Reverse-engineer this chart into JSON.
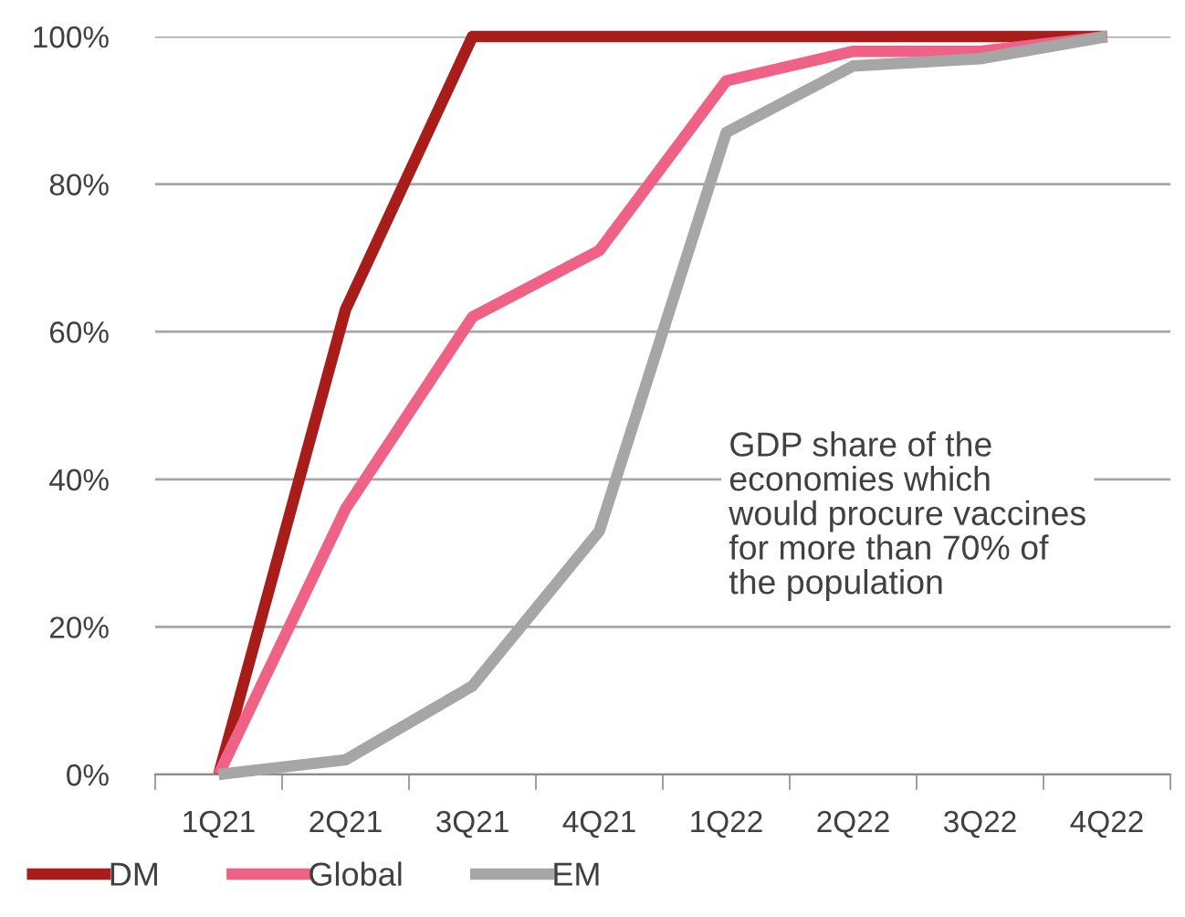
{
  "chart_data": {
    "type": "line",
    "categories": [
      "1Q21",
      "2Q21",
      "3Q21",
      "4Q21",
      "1Q22",
      "2Q22",
      "3Q22",
      "4Q22"
    ],
    "series": [
      {
        "name": "DM",
        "color": "#a81c1a",
        "values": [
          0,
          63,
          100,
          100,
          100,
          100,
          100,
          100
        ]
      },
      {
        "name": "Global",
        "color": "#ef6286",
        "values": [
          0,
          36,
          62,
          71,
          94,
          98,
          98,
          100
        ]
      },
      {
        "name": "EM",
        "color": "#a6a6a6",
        "values": [
          0,
          2,
          12,
          33,
          87,
          96,
          97,
          100
        ]
      }
    ],
    "ylim": [
      0,
      100
    ],
    "yticks": [
      {
        "value": 0,
        "label": "0%"
      },
      {
        "value": 20,
        "label": "20%"
      },
      {
        "value": 40,
        "label": "40%"
      },
      {
        "value": 60,
        "label": "60%"
      },
      {
        "value": 80,
        "label": "80%"
      },
      {
        "value": 100,
        "label": "100%"
      }
    ],
    "grid": "y",
    "legend": "bottom",
    "marker": "none",
    "line_style": "solid",
    "annotations": [
      "GDP share of the\neconomies which\nwould procure vaccines\nfor more than 70% of\nthe population"
    ]
  }
}
